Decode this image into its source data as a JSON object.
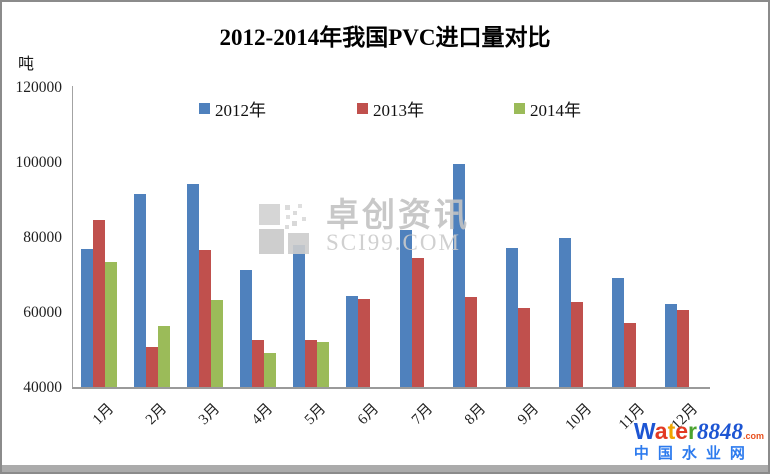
{
  "chart_data": {
    "type": "bar",
    "title": "2012-2014年我国PVC进口量对比",
    "unit_label": "吨",
    "ylim": [
      40000,
      120000
    ],
    "yticks": [
      120000,
      100000,
      80000,
      60000,
      40000
    ],
    "grid": false,
    "legend_position": "top-inside",
    "categories": [
      "1月",
      "2月",
      "3月",
      "4月",
      "5月",
      "6月",
      "7月",
      "8月",
      "9月",
      "10月",
      "11月",
      "12月"
    ],
    "series": [
      {
        "name": "2012年",
        "color": "#4F81BD",
        "values": [
          76900,
          91500,
          94100,
          71200,
          77800,
          64300,
          81800,
          99500,
          77100,
          79800,
          69100,
          62100
        ]
      },
      {
        "name": "2013年",
        "color": "#C0504D",
        "values": [
          84500,
          50700,
          76500,
          52500,
          52500,
          63500,
          74500,
          64100,
          61100,
          62600,
          57100,
          60500
        ]
      },
      {
        "name": "2014年",
        "color": "#9BBB59",
        "values": [
          73300,
          56300,
          63200,
          49100,
          52000,
          null,
          null,
          null,
          null,
          null,
          null,
          null
        ]
      }
    ]
  },
  "watermark": {
    "main_text": "卓创资讯",
    "sub_text": "SCI99.COM"
  },
  "footer_logo": {
    "brand_letters": [
      {
        "ch": "W",
        "color": "#1d55d3"
      },
      {
        "ch": "a",
        "color": "#e23a23"
      },
      {
        "ch": "t",
        "color": "#f0a500"
      },
      {
        "ch": "e",
        "color": "#e23a23"
      },
      {
        "ch": "r",
        "color": "#4ba32f"
      }
    ],
    "brand_number": "8848",
    "brand_number_color": "#1d55d3",
    "brand_suffix": ".com",
    "brand_suffix_color": "#e8501e",
    "tagline": "中国水业网",
    "tagline_color": "#2d7bee"
  }
}
